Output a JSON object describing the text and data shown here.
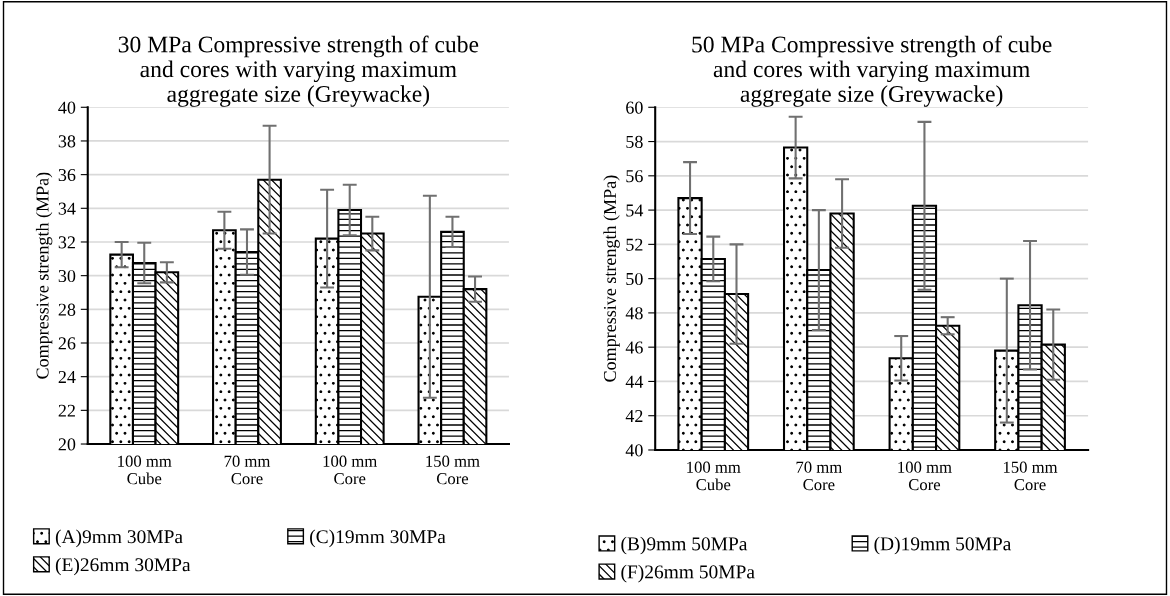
{
  "chart_data": [
    {
      "type": "bar",
      "title": "30 MPa Compressive strength of cube\nand cores with varying maximum\naggregate size (Greywacke)",
      "ylabel": "Compressive strength (MPa)",
      "categories": [
        "100 mm\nCube",
        "70 mm\nCore",
        "100 mm\nCore",
        "150 mm\nCore"
      ],
      "ylim": [
        20,
        40
      ],
      "yticks": [
        20,
        22,
        24,
        26,
        28,
        30,
        32,
        34,
        36,
        38,
        40
      ],
      "grid": "y",
      "legend": "bottom",
      "series": [
        {
          "name": "(A)9mm 30MPa",
          "color": "#000000",
          "values": [
            31.25,
            32.7,
            32.2,
            28.75
          ],
          "errors": [
            0.75,
            1.1,
            2.9,
            6.0
          ]
        },
        {
          "name": "(C)19mm 30MPa",
          "color": "#000000",
          "values": [
            30.75,
            31.4,
            33.9,
            32.6
          ],
          "errors": [
            1.2,
            1.35,
            1.5,
            0.9
          ]
        },
        {
          "name": "(E)26mm 30MPa",
          "color": "#000000",
          "values": [
            30.2,
            35.7,
            32.5,
            29.2
          ],
          "errors": [
            0.6,
            3.2,
            1.0,
            0.75
          ]
        }
      ]
    },
    {
      "type": "bar",
      "title": "50 MPa Compressive strength of cube\nand cores with varying maximum\naggregate size (Greywacke)",
      "ylabel": "Compressive strength (MPa)",
      "categories": [
        "100 mm\nCube",
        "70 mm\nCore",
        "100 mm\nCore",
        "150 mm\nCore"
      ],
      "ylim": [
        40,
        60
      ],
      "yticks": [
        40,
        42,
        44,
        46,
        48,
        50,
        52,
        54,
        56,
        58,
        60
      ],
      "grid": "y",
      "legend": "bottom",
      "series": [
        {
          "name": "(B)9mm 50MPa",
          "color": "#000000",
          "values": [
            54.7,
            57.65,
            45.35,
            45.8
          ],
          "errors": [
            2.1,
            1.8,
            1.3,
            4.2
          ]
        },
        {
          "name": "(D)19mm 50MPa",
          "color": "#000000",
          "values": [
            51.15,
            50.5,
            54.25,
            48.45
          ],
          "errors": [
            1.3,
            3.5,
            4.9,
            3.75
          ]
        },
        {
          "name": "(F)26mm 50MPa",
          "color": "#000000",
          "values": [
            49.1,
            53.8,
            47.25,
            46.15
          ],
          "errors": [
            2.9,
            2.0,
            0.5,
            2.05
          ]
        }
      ]
    }
  ]
}
